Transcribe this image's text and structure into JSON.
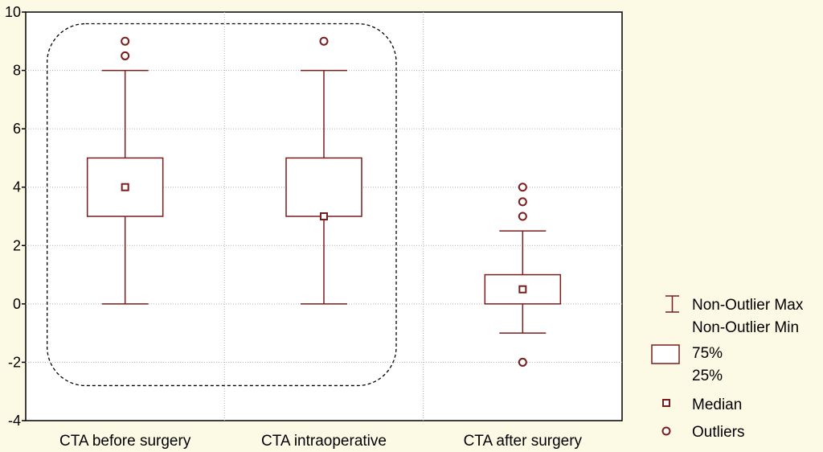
{
  "chart_data": {
    "type": "box",
    "title": "",
    "xlabel": "",
    "ylabel": "",
    "ylim": [
      -4,
      10
    ],
    "yticks": [
      "10",
      "8",
      "6",
      "4",
      "2",
      "0",
      "-2",
      "-4"
    ],
    "grid": true,
    "legend_position": "right",
    "categories": [
      "CTA before surgery",
      "CTA intraoperative",
      "CTA after surgery"
    ],
    "boxes": [
      {
        "category": "CTA before surgery",
        "whisker_min": 0,
        "q1": 3,
        "median": 4,
        "q3": 5,
        "whisker_max": 8,
        "outliers": [
          8.5,
          9
        ]
      },
      {
        "category": "CTA intraoperative",
        "whisker_min": 0,
        "q1": 3,
        "median": 3,
        "q3": 5,
        "whisker_max": 8,
        "outliers": [
          9
        ]
      },
      {
        "category": "CTA after surgery",
        "whisker_min": -1,
        "q1": 0,
        "median": 0.5,
        "q3": 1,
        "whisker_max": 2.5,
        "outliers": [
          -2,
          3,
          3.5,
          4
        ]
      }
    ],
    "highlight_group": [
      "CTA before surgery",
      "CTA intraoperative"
    ],
    "colors": {
      "box": "#7a1c1c",
      "background": "#fcf9e4",
      "plot": "#ffffff",
      "grid": "#b4b4b4"
    }
  },
  "legend": {
    "whisker_max": "Non-Outlier Max",
    "whisker_min": "Non-Outlier Min",
    "box_top": "75%",
    "box_bottom": "25%",
    "median": "Median",
    "outliers": "Outliers"
  }
}
